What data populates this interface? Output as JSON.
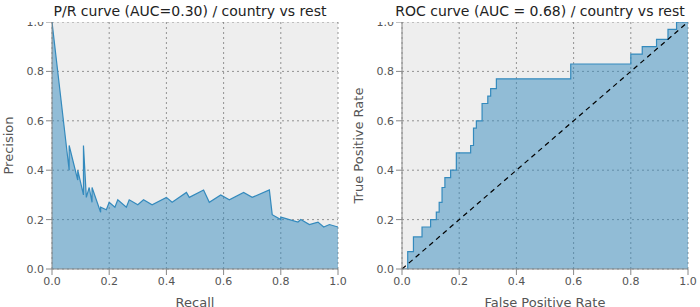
{
  "chart_data": [
    {
      "type": "area",
      "title": "P/R curve (AUC=0.30) / country vs rest",
      "x_label": "Recall",
      "y_label": "Precision",
      "x": [
        0,
        0.06,
        0.06,
        0.09,
        0.09,
        0.11,
        0.11,
        0.12,
        0.13,
        0.14,
        0.14,
        0.17,
        0.17,
        0.19,
        0.2,
        0.22,
        0.23,
        0.26,
        0.27,
        0.3,
        0.32,
        0.35,
        0.4,
        0.42,
        0.47,
        0.48,
        0.53,
        0.55,
        0.59,
        0.62,
        0.67,
        0.7,
        0.76,
        0.77,
        0.8,
        0.8,
        0.86,
        0.87,
        0.9,
        0.93,
        0.95,
        0.97,
        1.0
      ],
      "series": [
        {
          "type": "area",
          "color": "#348abd",
          "values": [
            1.0,
            0.4,
            0.5,
            0.36,
            0.4,
            0.3,
            0.5,
            0.29,
            0.33,
            0.27,
            0.33,
            0.23,
            0.25,
            0.24,
            0.27,
            0.25,
            0.28,
            0.25,
            0.28,
            0.26,
            0.28,
            0.26,
            0.29,
            0.27,
            0.31,
            0.29,
            0.32,
            0.27,
            0.3,
            0.28,
            0.31,
            0.29,
            0.32,
            0.22,
            0.2,
            0.21,
            0.19,
            0.2,
            0.18,
            0.19,
            0.17,
            0.18,
            0.17
          ]
        }
      ],
      "xlim": [
        0,
        1
      ],
      "ylim": [
        0,
        1
      ],
      "xticks": [
        {
          "value": 0,
          "label": "0.0"
        },
        0.2,
        0.4,
        0.6,
        0.8,
        {
          "value": 1,
          "label": "1.0"
        }
      ],
      "yticks": [
        {
          "value": 0,
          "label": "0.0"
        },
        0.2,
        0.4,
        0.6,
        0.8,
        {
          "value": 1,
          "label": "1.0"
        }
      ],
      "grid": true
    },
    {
      "type": "area",
      "title": "ROC curve (AUC = 0.68) / country vs rest",
      "x_label": "False Positive Rate",
      "y_label": "True Positive Rate",
      "x": [
        0,
        0.02,
        0.02,
        0.04,
        0.04,
        0.07,
        0.07,
        0.1,
        0.1,
        0.12,
        0.12,
        0.13,
        0.13,
        0.14,
        0.14,
        0.15,
        0.15,
        0.17,
        0.17,
        0.19,
        0.19,
        0.24,
        0.24,
        0.25,
        0.25,
        0.26,
        0.26,
        0.28,
        0.28,
        0.3,
        0.3,
        0.31,
        0.31,
        0.33,
        0.33,
        0.59,
        0.59,
        0.8,
        0.8,
        0.84,
        0.84,
        0.89,
        0.89,
        0.93,
        0.93,
        0.96,
        0.96,
        1.0
      ],
      "series": [
        {
          "type": "area",
          "color": "#348abd",
          "values": [
            0,
            0,
            0.07,
            0.07,
            0.13,
            0.13,
            0.17,
            0.17,
            0.2,
            0.2,
            0.23,
            0.23,
            0.27,
            0.27,
            0.33,
            0.33,
            0.37,
            0.37,
            0.4,
            0.4,
            0.47,
            0.47,
            0.5,
            0.5,
            0.57,
            0.57,
            0.6,
            0.6,
            0.67,
            0.67,
            0.7,
            0.7,
            0.73,
            0.73,
            0.77,
            0.77,
            0.83,
            0.83,
            0.87,
            0.87,
            0.9,
            0.9,
            0.93,
            0.93,
            0.97,
            0.97,
            1.0,
            1.0
          ]
        },
        {
          "type": "line",
          "color": "#000000",
          "line_style": "dashed",
          "values": [
            0,
            null,
            null,
            null,
            null,
            null,
            null,
            null,
            null,
            null,
            null,
            null,
            null,
            null,
            null,
            null,
            null,
            null,
            null,
            null,
            null,
            null,
            null,
            null,
            null,
            null,
            null,
            null,
            null,
            null,
            null,
            null,
            null,
            null,
            null,
            null,
            null,
            null,
            null,
            null,
            null,
            null,
            null,
            null,
            null,
            null,
            null,
            1
          ]
        }
      ],
      "xlim": [
        0,
        1
      ],
      "ylim": [
        0,
        1
      ],
      "xticks": [
        {
          "value": 0,
          "label": "0.0"
        },
        0.2,
        0.4,
        0.6,
        0.8,
        {
          "value": 1,
          "label": "1.0"
        }
      ],
      "yticks": [
        {
          "value": 0,
          "label": "0.0"
        },
        0.2,
        0.4,
        0.6,
        0.8,
        {
          "value": 1,
          "label": "1.0"
        }
      ],
      "grid": true
    }
  ]
}
